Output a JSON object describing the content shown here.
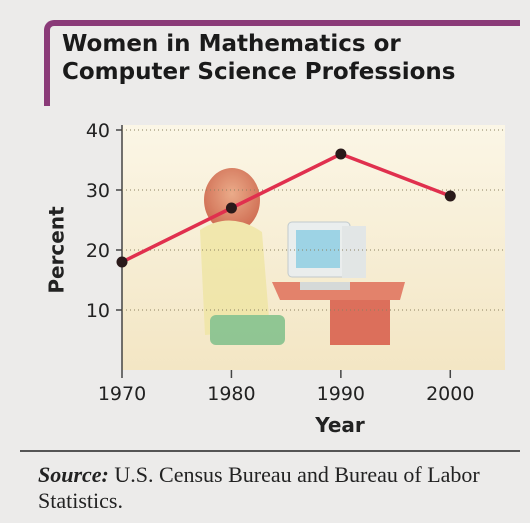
{
  "chart_data": {
    "type": "line",
    "title": "Women in Mathematics or Computer Science Professions",
    "x_label": "Year",
    "y_label": "Percent",
    "x": [
      1970,
      1980,
      1990,
      2000
    ],
    "values": [
      18,
      27,
      36,
      29
    ],
    "color": "#e0304e",
    "xlim": [
      1970,
      2005
    ],
    "xticks": [
      1970,
      1980,
      1990,
      2000
    ],
    "ylim": [
      0,
      40
    ],
    "yticks": [
      10,
      20,
      30,
      40
    ],
    "grid": true
  },
  "source": {
    "label": "Source:",
    "text": "U.S. Census Bureau and Bureau of Labor Statistics."
  }
}
